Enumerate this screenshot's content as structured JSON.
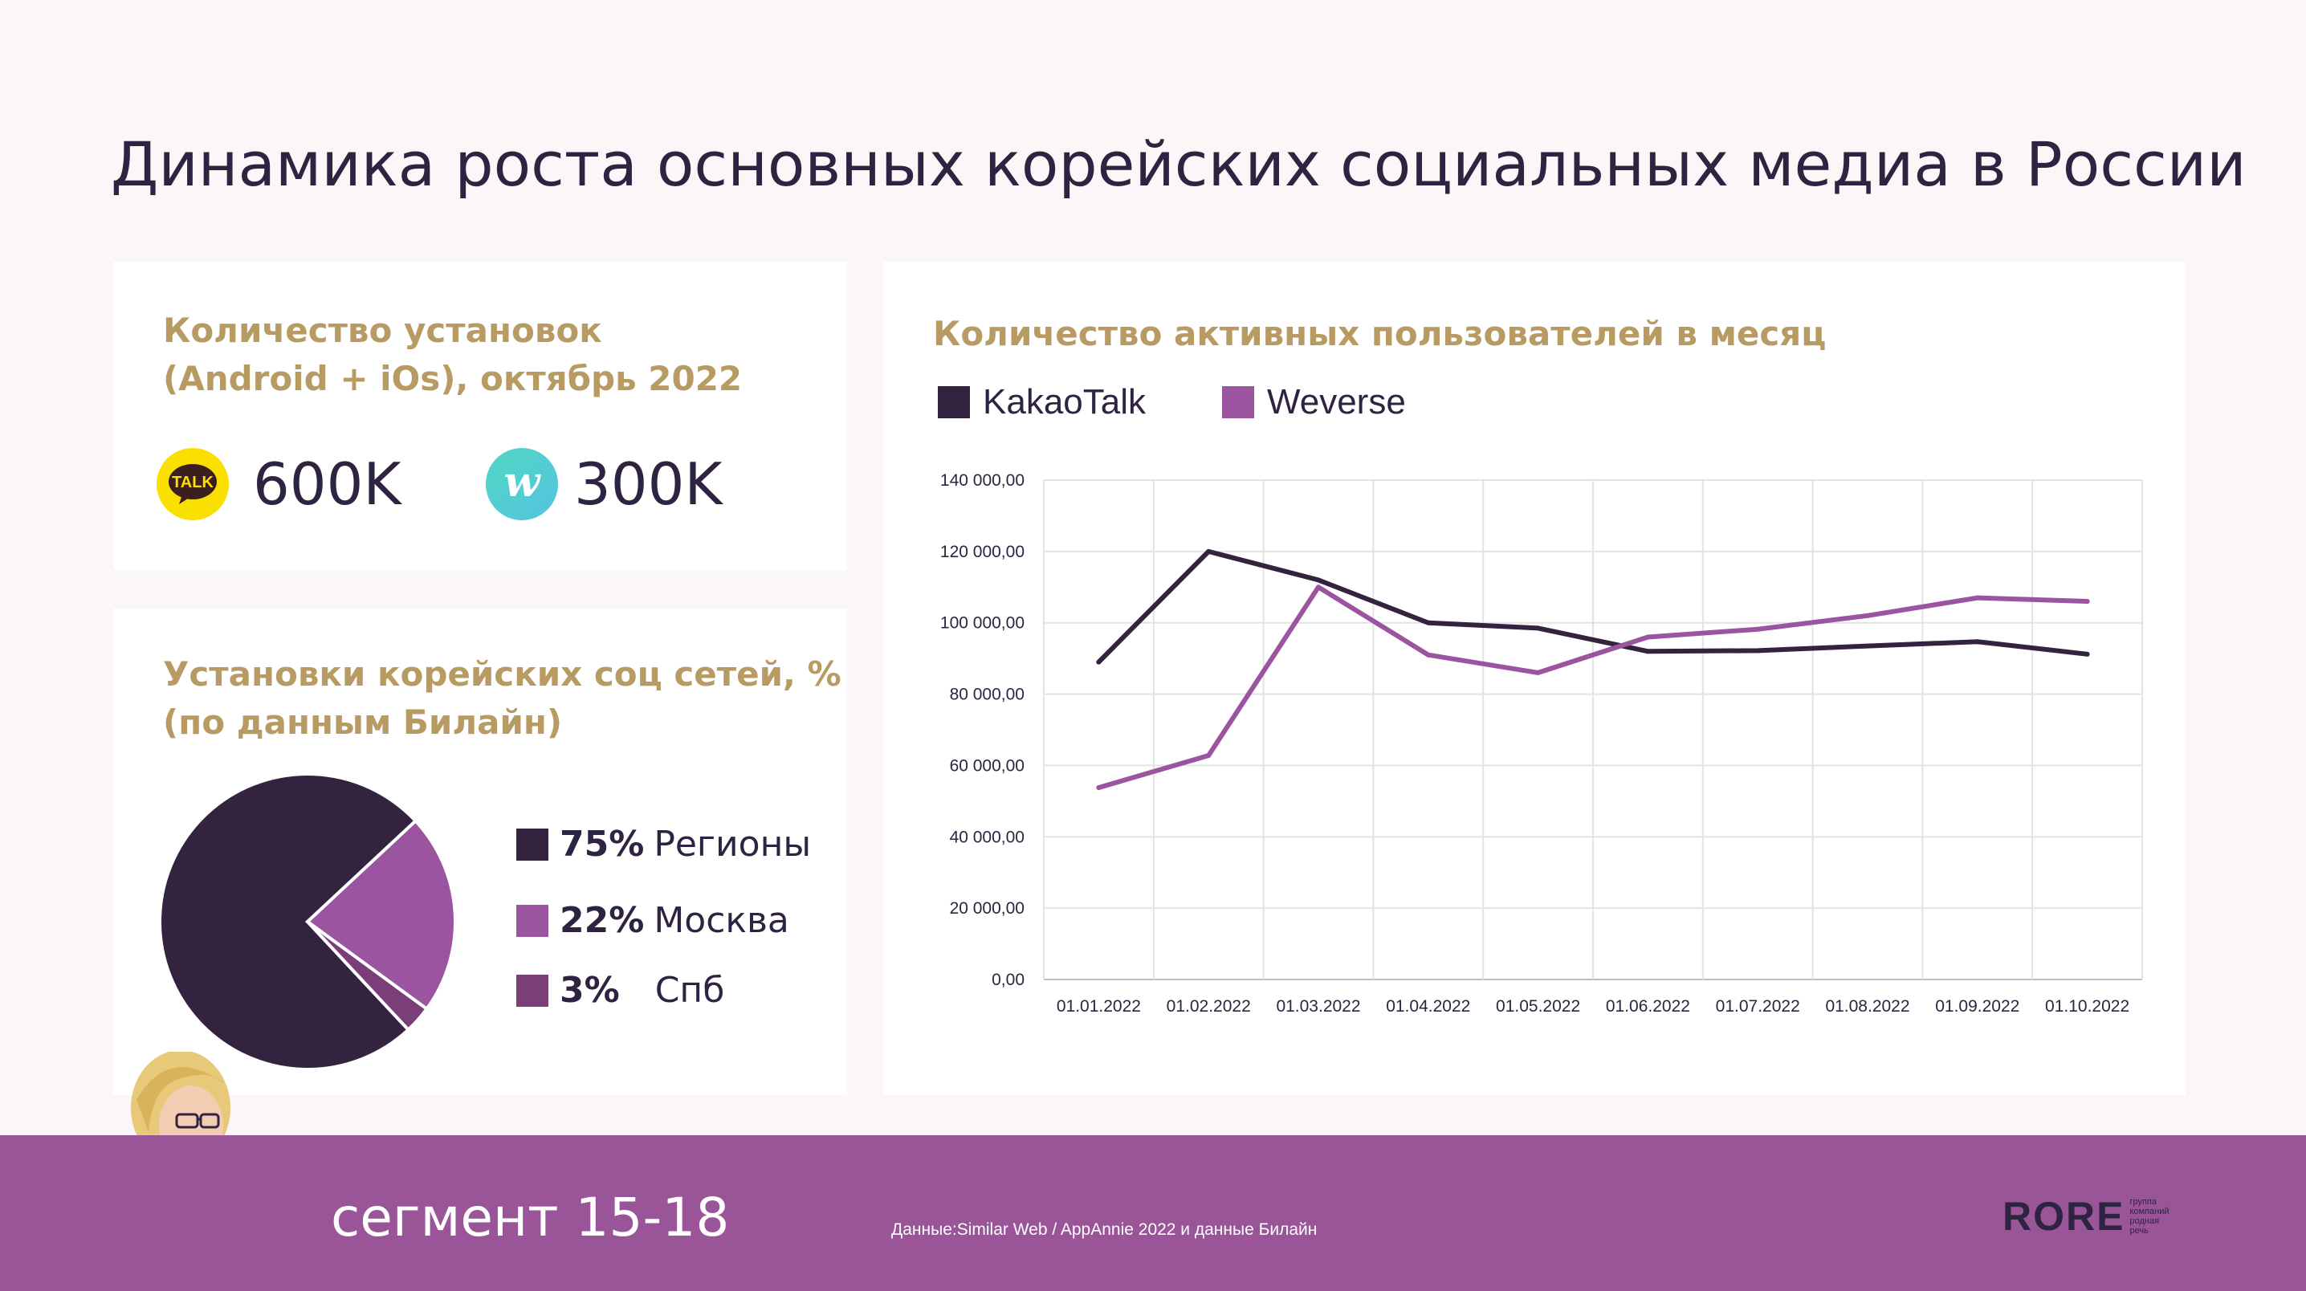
{
  "title": "Динамика роста основных корейских социальных медиа в России",
  "colors": {
    "kakao": "#33233f",
    "weverse": "#9b55a0",
    "spb": "#7a3f78",
    "title_gold": "#b89a63",
    "footer": "#995598"
  },
  "installs": {
    "title_line1": "Количество установок",
    "title_line2": "(Android + iOs), октябрь 2022",
    "apps": [
      {
        "icon": "kakaotalk-icon",
        "icon_text": "TALK",
        "value": "600K"
      },
      {
        "icon": "weverse-icon",
        "icon_text": "w",
        "value": "300K"
      }
    ]
  },
  "pie": {
    "title_line1": "Установки корейских соц сетей, %",
    "title_line2": "(по данным Билайн)",
    "legend": [
      {
        "pct": "75%",
        "label": "Регионы"
      },
      {
        "pct": "22%",
        "label": "Москва"
      },
      {
        "pct": "3%",
        "label": "Спб"
      }
    ]
  },
  "mau": {
    "title": "Количество активных пользователей в месяц",
    "legend": [
      "KakaoTalk",
      "Weverse"
    ]
  },
  "chart_data": [
    {
      "type": "pie",
      "title": "Установки корейских соц сетей, %",
      "categories": [
        "Регионы",
        "Москва",
        "Спб"
      ],
      "values": [
        75,
        22,
        3
      ],
      "legend_position": "right"
    },
    {
      "type": "line",
      "title": "Количество активных пользователей в месяц",
      "categories": [
        "01.01.2022",
        "01.02.2022",
        "01.03.2022",
        "01.04.2022",
        "01.05.2022",
        "01.06.2022",
        "01.07.2022",
        "01.08.2022",
        "01.09.2022",
        "01.10.2022"
      ],
      "series": [
        {
          "name": "KakaoTalk",
          "values": [
            89000,
            120000,
            112000,
            100000,
            98500,
            92000,
            92200,
            93500,
            94700,
            91200
          ]
        },
        {
          "name": "Weverse",
          "values": [
            53800,
            62800,
            110000,
            91000,
            86000,
            96000,
            98200,
            102000,
            107000,
            106000
          ]
        }
      ],
      "ylim": [
        0,
        140000
      ],
      "yticks": [
        "0,00",
        "20 000,00",
        "40 000,00",
        "60 000,00",
        "80 000,00",
        "100 000,00",
        "120 000,00",
        "140 000,00"
      ],
      "grid": true,
      "legend_position": "top-left"
    }
  ],
  "footer": {
    "segment": "сегмент 15-18",
    "source": "Данные:Similar Web / AppAnnie 2022 и данные Билайн",
    "brand": "RORE",
    "brand_sub": [
      "группа",
      "компаний",
      "родная",
      "речь"
    ]
  }
}
